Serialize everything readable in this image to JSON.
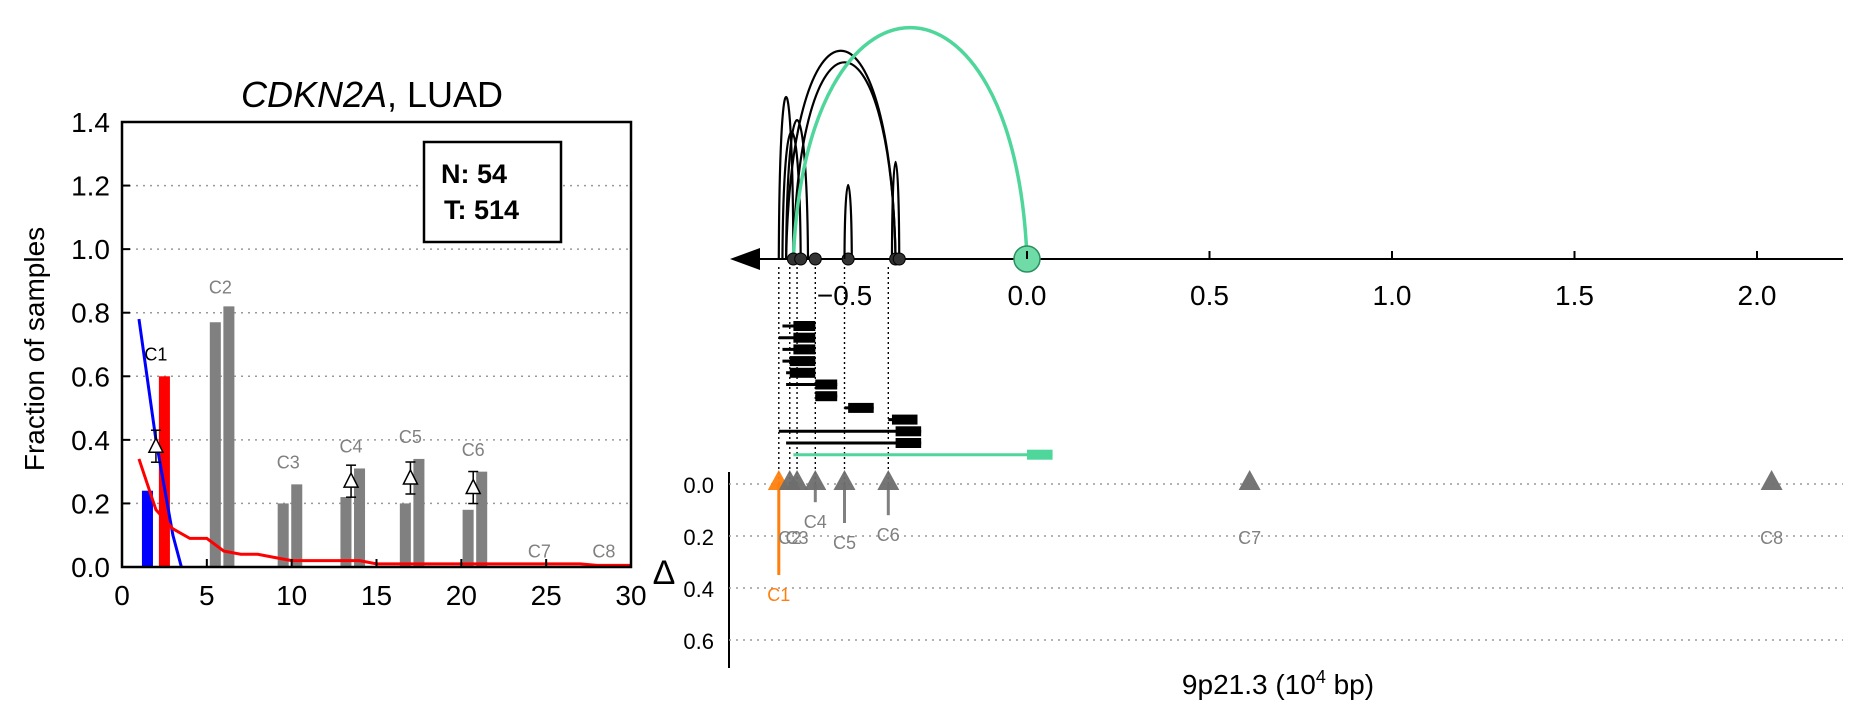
{
  "title": {
    "gene": "CDKN2A",
    "rest": ", LUAD"
  },
  "left_plot": {
    "ylabel": "Fraction of samples",
    "yticks": [
      "0.0",
      "0.2",
      "0.4",
      "0.6",
      "0.8",
      "1.0",
      "1.2",
      "1.4"
    ],
    "xticks": [
      "0",
      "5",
      "10",
      "15",
      "20",
      "25",
      "30"
    ],
    "legend": {
      "n_label": "N: 54",
      "t_label": "T: 514"
    }
  },
  "right_plot": {
    "xlabel_main": "9p21.3 (10",
    "xlabel_exp": "4",
    "xlabel_tail": " bp)",
    "xticks": [
      "−0.5",
      "0.0",
      "0.5",
      "1.0",
      "1.5",
      "2.0"
    ],
    "delta_label": "Δ",
    "delta_ticks": [
      "0.0",
      "0.2",
      "0.4",
      "0.6"
    ]
  },
  "chart_data": [
    {
      "type": "bar",
      "title": "CDKN2A, LUAD",
      "xlabel": "",
      "ylabel": "Fraction of samples",
      "xlim": [
        0,
        30
      ],
      "ylim": [
        0,
        1.4
      ],
      "grid": true,
      "colors": {
        "normal": "#0000ff",
        "tumor": "#ff0000",
        "other": "#808080"
      },
      "bars": [
        {
          "x": 1.5,
          "value": 0.24,
          "color": "#0000ff"
        },
        {
          "x": 2.5,
          "value": 0.6,
          "color": "#ff0000"
        },
        {
          "x": 5.5,
          "value": 0.77,
          "color": "#808080"
        },
        {
          "x": 6.3,
          "value": 0.82,
          "color": "#808080"
        },
        {
          "x": 9.5,
          "value": 0.2,
          "color": "#808080"
        },
        {
          "x": 10.3,
          "value": 0.26,
          "color": "#808080"
        },
        {
          "x": 13.2,
          "value": 0.22,
          "color": "#808080"
        },
        {
          "x": 14.0,
          "value": 0.31,
          "color": "#808080"
        },
        {
          "x": 16.7,
          "value": 0.2,
          "color": "#808080"
        },
        {
          "x": 17.5,
          "value": 0.34,
          "color": "#808080"
        },
        {
          "x": 20.4,
          "value": 0.18,
          "color": "#808080"
        },
        {
          "x": 21.2,
          "value": 0.3,
          "color": "#808080"
        }
      ],
      "clusters": [
        {
          "label": "C1",
          "x": 2.0,
          "y": 0.65,
          "delta": 0.38
        },
        {
          "label": "C2",
          "x": 5.8,
          "y": 0.86,
          "delta": null
        },
        {
          "label": "C3",
          "x": 9.8,
          "y": 0.31,
          "delta": null
        },
        {
          "label": "C4",
          "x": 13.5,
          "y": 0.36,
          "delta": 0.27
        },
        {
          "label": "C5",
          "x": 17.0,
          "y": 0.39,
          "delta": 0.28
        },
        {
          "label": "C6",
          "x": 20.7,
          "y": 0.35,
          "delta": 0.25
        },
        {
          "label": "C7",
          "x": 24.6,
          "y": 0.03,
          "delta": null
        },
        {
          "label": "C8",
          "x": 28.4,
          "y": 0.03,
          "delta": null
        }
      ],
      "series": [
        {
          "name": "",
          "color": "#0000ff",
          "x": [
            1,
            2,
            3,
            3.5
          ],
          "y": [
            0.78,
            0.4,
            0.1,
            0.0
          ]
        },
        {
          "name": "",
          "color": "#ff0000",
          "x": [
            1,
            2,
            3,
            4,
            5,
            6,
            7,
            8,
            9,
            10,
            11,
            12,
            13,
            14,
            15,
            16,
            17,
            18,
            19,
            20,
            21,
            22,
            23,
            24,
            25,
            26,
            27,
            28,
            29,
            30
          ],
          "y": [
            0.34,
            0.18,
            0.12,
            0.09,
            0.09,
            0.05,
            0.04,
            0.04,
            0.03,
            0.02,
            0.02,
            0.02,
            0.02,
            0.02,
            0.01,
            0.01,
            0.01,
            0.01,
            0.01,
            0.01,
            0.01,
            0.01,
            0.01,
            0.01,
            0.01,
            0.01,
            0.01,
            0.005,
            0.005,
            0.005
          ]
        }
      ]
    },
    {
      "type": "scatter",
      "title": "",
      "xlabel": "9p21.3 (10^4 bp)",
      "ylabel": "Δ",
      "xlim": [
        -1.0,
        2.2
      ],
      "delta_ylim": [
        0,
        0.7
      ],
      "grid": true,
      "nodes": [
        -0.64,
        -0.62,
        -0.58,
        -0.49,
        -0.36,
        -0.35,
        0.0
      ],
      "arcs": [
        {
          "from": -0.68,
          "to": -0.64,
          "height": 0.7,
          "color": "#000000"
        },
        {
          "from": -0.67,
          "to": -0.62,
          "height": 0.55,
          "color": "#000000"
        },
        {
          "from": -0.66,
          "to": -0.6,
          "height": 0.6,
          "color": "#000000"
        },
        {
          "from": -0.66,
          "to": -0.36,
          "height": 0.9,
          "color": "#000000"
        },
        {
          "from": -0.64,
          "to": -0.36,
          "height": 0.85,
          "color": "#000000"
        },
        {
          "from": -0.5,
          "to": -0.48,
          "height": 0.32,
          "color": "#000000"
        },
        {
          "from": -0.37,
          "to": -0.35,
          "height": 0.42,
          "color": "#000000"
        },
        {
          "from": -0.64,
          "to": 0.0,
          "height": 1.0,
          "color": "#4fd69a"
        }
      ],
      "transcripts": [
        {
          "start": -0.67,
          "end": -0.58,
          "exon": [
            -0.64,
            -0.58
          ],
          "row": 0
        },
        {
          "start": -0.68,
          "end": -0.58,
          "exon": [
            -0.64,
            -0.58
          ],
          "row": 1
        },
        {
          "start": -0.67,
          "end": -0.58,
          "exon": [
            -0.64,
            -0.58
          ],
          "row": 2
        },
        {
          "start": -0.67,
          "end": -0.58,
          "exon": [
            -0.65,
            -0.58
          ],
          "row": 3
        },
        {
          "start": -0.66,
          "end": -0.58,
          "exon": [
            -0.65,
            -0.58
          ],
          "row": 4
        },
        {
          "start": -0.66,
          "end": -0.52,
          "exon": [
            -0.58,
            -0.52
          ],
          "row": 5
        },
        {
          "start": -0.58,
          "end": -0.52,
          "exon": [
            -0.58,
            -0.52
          ],
          "row": 6
        },
        {
          "start": -0.5,
          "end": -0.42,
          "exon": [
            -0.49,
            -0.42
          ],
          "row": 7
        },
        {
          "start": -0.38,
          "end": -0.3,
          "exon": [
            -0.37,
            -0.3
          ],
          "row": 8
        },
        {
          "start": -0.68,
          "end": -0.29,
          "exon": [
            -0.36,
            -0.29
          ],
          "row": 9
        },
        {
          "start": -0.66,
          "end": -0.29,
          "exon": [
            -0.36,
            -0.29
          ],
          "row": 10
        },
        {
          "start": -0.64,
          "end": 0.07,
          "exon": [
            0.0,
            0.07
          ],
          "row": 11,
          "color": "#4fd69a"
        }
      ],
      "markers": [
        {
          "label": "C1",
          "x": -0.68,
          "delta": 0.35,
          "color": "#ff7f0e"
        },
        {
          "label": "C2",
          "x": -0.65,
          "delta": 0.0,
          "color": "#808080"
        },
        {
          "label": "C3",
          "x": -0.63,
          "delta": 0.0,
          "color": "#808080"
        },
        {
          "label": "C4",
          "x": -0.58,
          "delta": 0.07,
          "color": "#808080"
        },
        {
          "label": "C5",
          "x": -0.5,
          "delta": 0.15,
          "color": "#808080"
        },
        {
          "label": "C6",
          "x": -0.38,
          "delta": 0.12,
          "color": "#808080"
        },
        {
          "label": "C7",
          "x": 0.61,
          "delta": 0.0,
          "color": "#808080"
        },
        {
          "label": "C8",
          "x": 2.04,
          "delta": 0.0,
          "color": "#808080"
        }
      ]
    }
  ]
}
